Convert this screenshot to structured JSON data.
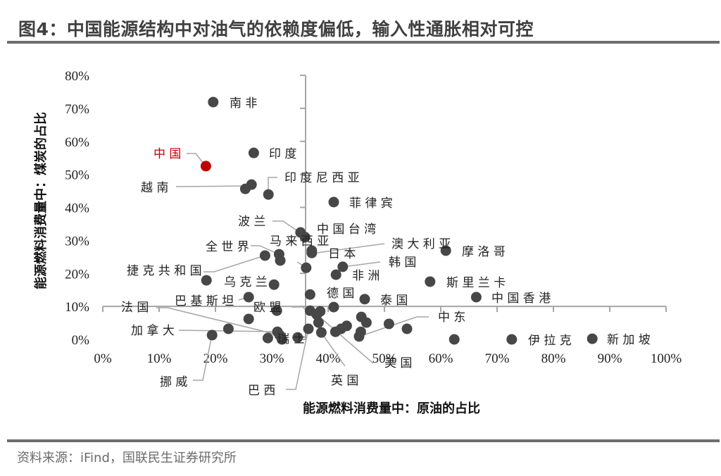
{
  "header": {
    "title": "图4：中国能源结构中对油气的依赖度偏低，输入性通胀相对可控"
  },
  "footer": {
    "source": "资料来源：iFind，国联民生证券研究所"
  },
  "colors": {
    "dot": "#474747",
    "highlight": "#c00000",
    "leader": "#a6a6a6",
    "axis": "#a6a6a6",
    "rule": "#6e6e6e"
  },
  "chart_data": {
    "type": "scatter",
    "title": "图4：中国能源结构中对油气的依赖度偏低，输入性通胀相对可控",
    "xlabel": "能源燃料消费量中：原油的占比",
    "ylabel": "能源燃料消费量中：煤炭的占比",
    "xlim": [
      0,
      100
    ],
    "ylim": [
      0,
      80
    ],
    "x_ticks": [
      "0%",
      "10%",
      "20%",
      "30%",
      "40%",
      "50%",
      "60%",
      "70%",
      "80%",
      "90%",
      "100%"
    ],
    "y_ticks": [
      "0%",
      "10%",
      "20%",
      "30%",
      "40%",
      "50%",
      "60%",
      "70%",
      "80%"
    ],
    "axis_cross": {
      "x": 36,
      "y": 10
    },
    "grid": false,
    "legend": "none",
    "points": [
      {
        "name": "南非",
        "x": 19.6,
        "y": 71.9,
        "highlight": false
      },
      {
        "name": "中国",
        "x": 18.3,
        "y": 52.5,
        "highlight": true
      },
      {
        "name": "印度",
        "x": 26.8,
        "y": 56.5,
        "highlight": false
      },
      {
        "name": "越南",
        "x": 26.4,
        "y": 46.9,
        "highlight": false
      },
      {
        "name": "",
        "x": 25.3,
        "y": 45.6,
        "highlight": false
      },
      {
        "name": "印度尼西亚",
        "x": 29.4,
        "y": 43.9,
        "highlight": false
      },
      {
        "name": "菲律宾",
        "x": 41.0,
        "y": 41.6,
        "highlight": false
      },
      {
        "name": "波兰",
        "x": 35.1,
        "y": 32.4,
        "highlight": false
      },
      {
        "name": "中国台湾",
        "x": 35.9,
        "y": 31.0,
        "highlight": false
      },
      {
        "name": "日本",
        "x": 37.1,
        "y": 26.2,
        "highlight": false
      },
      {
        "name": "澳大利亚",
        "x": 37.1,
        "y": 26.9,
        "highlight": false
      },
      {
        "name": "马来西亚",
        "x": 36.1,
        "y": 21.7,
        "highlight": false
      },
      {
        "name": "全世界",
        "x": 28.8,
        "y": 25.4,
        "highlight": false
      },
      {
        "name": "",
        "x": 31.3,
        "y": 25.8,
        "highlight": false
      },
      {
        "name": "",
        "x": 31.5,
        "y": 23.9,
        "highlight": false
      },
      {
        "name": "捷克共和国",
        "x": 18.4,
        "y": 17.9,
        "highlight": false
      },
      {
        "name": "乌克兰",
        "x": 30.4,
        "y": 16.6,
        "highlight": false
      },
      {
        "name": "巴基斯坦",
        "x": 25.9,
        "y": 12.8,
        "highlight": false
      },
      {
        "name": "韩国",
        "x": 42.6,
        "y": 22.0,
        "highlight": false
      },
      {
        "name": "非洲",
        "x": 41.4,
        "y": 19.6,
        "highlight": false
      },
      {
        "name": "摩洛哥",
        "x": 60.9,
        "y": 26.9,
        "highlight": false
      },
      {
        "name": "斯里兰卡",
        "x": 58.1,
        "y": 17.5,
        "highlight": false
      },
      {
        "name": "中国香港",
        "x": 66.3,
        "y": 12.8,
        "highlight": false
      },
      {
        "name": "",
        "x": 36.8,
        "y": 13.6,
        "highlight": false
      },
      {
        "name": "德国",
        "x": 41.0,
        "y": 9.8,
        "highlight": false
      },
      {
        "name": "泰国",
        "x": 46.5,
        "y": 12.2,
        "highlight": false
      },
      {
        "name": "欧盟",
        "x": 36.8,
        "y": 8.7,
        "highlight": false
      },
      {
        "name": "",
        "x": 38.0,
        "y": 7.5,
        "highlight": false
      },
      {
        "name": "",
        "x": 38.3,
        "y": 5.1,
        "highlight": false
      },
      {
        "name": "",
        "x": 38.6,
        "y": 8.5,
        "highlight": false
      },
      {
        "name": "中东",
        "x": 50.8,
        "y": 4.7,
        "highlight": false
      },
      {
        "name": "",
        "x": 54.0,
        "y": 3.2,
        "highlight": false
      },
      {
        "name": "",
        "x": 62.4,
        "y": 0.0,
        "highlight": false
      },
      {
        "name": "伊拉克",
        "x": 72.6,
        "y": 0.0,
        "highlight": false
      },
      {
        "name": "新加坡",
        "x": 86.9,
        "y": 0.2,
        "highlight": false
      },
      {
        "name": "美国",
        "x": 45.5,
        "y": 0.9,
        "highlight": false
      },
      {
        "name": "",
        "x": 45.8,
        "y": 2.3,
        "highlight": false
      },
      {
        "name": "",
        "x": 42.3,
        "y": 3.2,
        "highlight": false
      },
      {
        "name": "",
        "x": 43.3,
        "y": 4.1,
        "highlight": false
      },
      {
        "name": "",
        "x": 45.9,
        "y": 6.8,
        "highlight": false
      },
      {
        "name": "",
        "x": 46.8,
        "y": 5.1,
        "highlight": false
      },
      {
        "name": "",
        "x": 41.3,
        "y": 2.3,
        "highlight": false
      },
      {
        "name": "英国",
        "x": 38.8,
        "y": 2.1,
        "highlight": false
      },
      {
        "name": "巴西",
        "x": 36.5,
        "y": 3.2,
        "highlight": false
      },
      {
        "name": "瑞士",
        "x": 34.6,
        "y": 0.6,
        "highlight": false
      },
      {
        "name": "法国",
        "x": 31.4,
        "y": 1.3,
        "highlight": false
      },
      {
        "name": "加拿大",
        "x": 31.0,
        "y": 2.3,
        "highlight": false
      },
      {
        "name": "",
        "x": 31.8,
        "y": 0.0,
        "highlight": false
      },
      {
        "name": "",
        "x": 29.3,
        "y": 0.4,
        "highlight": false
      },
      {
        "name": "",
        "x": 30.9,
        "y": 8.7,
        "highlight": false
      },
      {
        "name": "",
        "x": 25.9,
        "y": 6.2,
        "highlight": false
      },
      {
        "name": "",
        "x": 22.3,
        "y": 3.2,
        "highlight": false
      },
      {
        "name": "挪威",
        "x": 19.4,
        "y": 1.3,
        "highlight": false
      }
    ]
  }
}
